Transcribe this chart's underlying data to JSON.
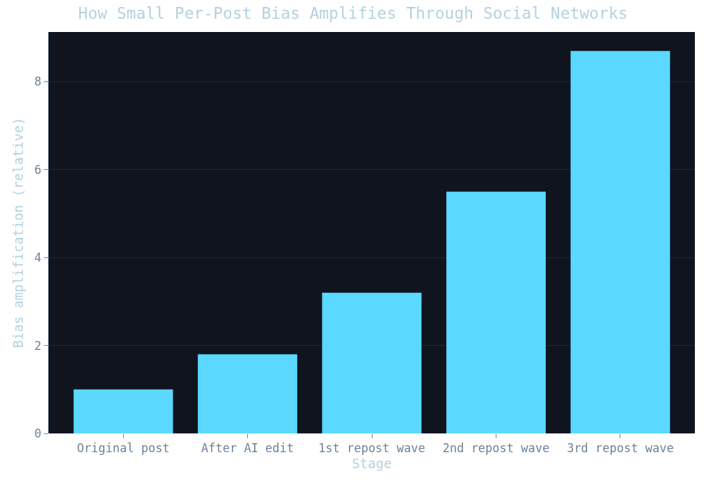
{
  "chart_data": {
    "type": "bar",
    "title": "How Small Per-Post Bias Amplifies Through Social Networks",
    "xlabel": "Stage",
    "ylabel": "Bias amplification (relative)",
    "categories": [
      "Original post",
      "After AI edit",
      "1st repost wave",
      "2nd repost wave",
      "3rd repost wave"
    ],
    "values": [
      1.0,
      1.8,
      3.2,
      5.5,
      8.7
    ],
    "color": "#5ad8ff",
    "ylim": [
      0,
      9.13
    ],
    "yticks": [
      0,
      2,
      4,
      6,
      8
    ],
    "grid": "y"
  }
}
